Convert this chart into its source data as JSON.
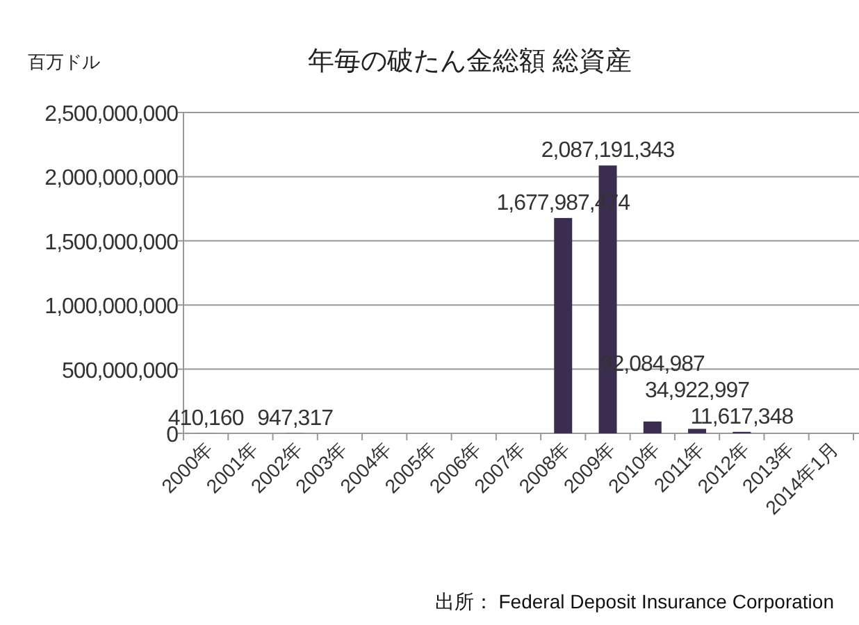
{
  "chart_data": {
    "type": "bar",
    "title": "年毎の破たん金総額 総資産",
    "ylabel": "百万ドル",
    "categories": [
      "2000年",
      "2001年",
      "2002年",
      "2003年",
      "2004年",
      "2005年",
      "2006年",
      "2007年",
      "2008年",
      "2009年",
      "2010年",
      "2011年",
      "2012年",
      "2013年",
      "2014年1月"
    ],
    "values": [
      410160,
      null,
      947317,
      null,
      null,
      null,
      null,
      null,
      1677987474,
      2087191343,
      92084987,
      34922997,
      11617348,
      null,
      null
    ],
    "value_labels": [
      "410,160",
      null,
      "947,317",
      null,
      null,
      null,
      null,
      null,
      "1,677,987,474",
      "2,087,191,343",
      "92,084,987",
      "34,922,997",
      "11,617,348",
      null,
      null
    ],
    "color": "#3b2d4f",
    "ylim": [
      0,
      2500000000
    ],
    "yticks": [
      {
        "value": 0,
        "label": "0"
      },
      {
        "value": 500000000,
        "label": "500,000,000"
      },
      {
        "value": 1000000000,
        "label": "1,000,000,000"
      },
      {
        "value": 1500000000,
        "label": "1,500,000,000"
      },
      {
        "value": 2000000000,
        "label": "2,000,000,000"
      },
      {
        "value": 2500000000,
        "label": "2,500,000,000"
      }
    ],
    "grid": "y",
    "annotations": [
      "出所： Federal Deposit Insurance Corporation"
    ]
  }
}
